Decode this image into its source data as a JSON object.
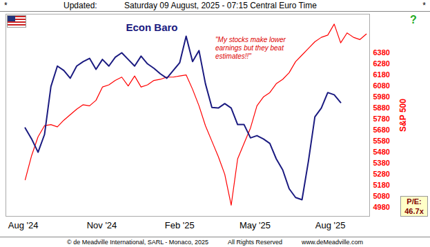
{
  "chart_data": {
    "type": "line",
    "title": "Econ Baro",
    "y_label": "S&P 500",
    "header_texts": [
      "*",
      "Updated:",
      "Saturday 09 August, 2025 - 07:15 Central Euro Time",
      "*"
    ],
    "annotations": [
      "\"My stocks make lower earnings but they beat estimates!!\"",
      "?"
    ],
    "pe_texts": [
      "P/E:",
      "46.7x"
    ],
    "footer_texts": [
      "© de Meadville International, SARL - Monaco, 2025",
      "All Rights Reserved",
      "www.deMeadville.com"
    ],
    "x": [
      0,
      1,
      2,
      3,
      4,
      5,
      6,
      7,
      8,
      9,
      10,
      11,
      12,
      13,
      14,
      15,
      16,
      17,
      18,
      19,
      20,
      21,
      22,
      23,
      24,
      25,
      26,
      27,
      28,
      29,
      30,
      31,
      32,
      33,
      34,
      35,
      36,
      37,
      38,
      39,
      40,
      41,
      42,
      43,
      44,
      45,
      46,
      47,
      48,
      49,
      50,
      51,
      52,
      53
    ],
    "series": [
      {
        "name": "S&P 500",
        "color": "#ff0000",
        "values": [
          5230,
          5450,
          5620,
          5720,
          5730,
          5710,
          5770,
          5820,
          5870,
          5910,
          5900,
          5950,
          6070,
          6090,
          6130,
          6160,
          6080,
          6170,
          6070,
          6090,
          6130,
          6140,
          6160,
          6160,
          6170,
          6180,
          6050,
          5900,
          5720,
          5580,
          5440,
          5280,
          5000,
          5420,
          5560,
          5700,
          5900,
          5980,
          6020,
          6100,
          6140,
          6200,
          6300,
          6360,
          6420,
          6480,
          6520,
          6540,
          6640,
          6470,
          6560,
          6520,
          6500,
          6550
        ]
      },
      {
        "name": "Econ Baro",
        "color": "#1a1a80",
        "values": [
          5700,
          5600,
          5480,
          5640,
          6075,
          6260,
          6220,
          6150,
          6260,
          6300,
          6330,
          6230,
          6320,
          6260,
          6340,
          6380,
          6320,
          6260,
          6350,
          6280,
          6240,
          6190,
          6150,
          6220,
          6290,
          6530,
          6300,
          6400,
          6100,
          5885,
          5880,
          5920,
          5880,
          5730,
          5730,
          5610,
          5630,
          5600,
          5560,
          5420,
          5320,
          5150,
          5070,
          5050,
          5400,
          5800,
          5880,
          6020,
          6000,
          5930,
          null,
          null,
          null,
          null
        ]
      }
    ],
    "xlim": [
      -3,
      53.5
    ],
    "xticks": [
      {
        "value": -0.3,
        "label": "Aug '24"
      },
      {
        "value": 11.9,
        "label": "Nov '24"
      },
      {
        "value": 24,
        "label": "Feb '25"
      },
      {
        "value": 35.7,
        "label": "May '25"
      },
      {
        "value": 47.4,
        "label": "Aug '25"
      }
    ],
    "ylim": [
      4900,
      6730
    ],
    "yticks": [
      4980,
      5080,
      5180,
      5280,
      5380,
      5480,
      5580,
      5680,
      5780,
      5880,
      5980,
      6080,
      6180,
      6280,
      6380
    ],
    "grid": false
  }
}
